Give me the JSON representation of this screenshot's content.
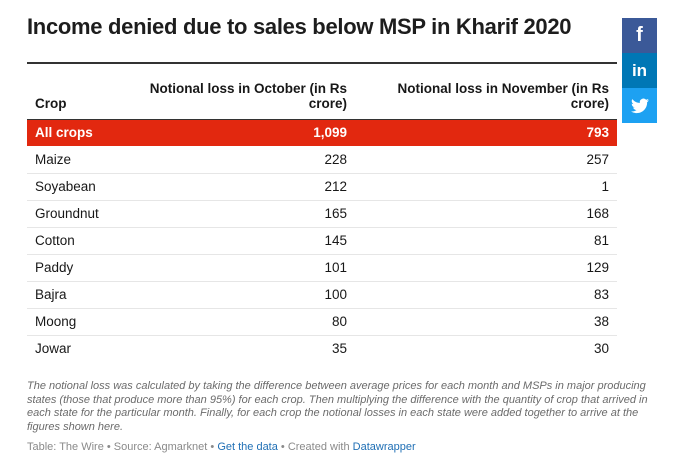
{
  "chart_data": {
    "type": "table",
    "title": "Income denied due to sales below MSP in Kharif 2020",
    "columns": [
      "Crop",
      "Notional loss in October (in Rs crore)",
      "Notional loss in November (in Rs crore)"
    ],
    "rows": [
      {
        "crop": "All crops",
        "october": "1,099",
        "november": "793",
        "highlight": true
      },
      {
        "crop": "Maize",
        "october": "228",
        "november": "257"
      },
      {
        "crop": "Soyabean",
        "october": "212",
        "november": "1"
      },
      {
        "crop": "Groundnut",
        "october": "165",
        "november": "168"
      },
      {
        "crop": "Cotton",
        "october": "145",
        "november": "81"
      },
      {
        "crop": "Paddy",
        "october": "101",
        "november": "129"
      },
      {
        "crop": "Bajra",
        "october": "100",
        "november": "83"
      },
      {
        "crop": "Moong",
        "october": "80",
        "november": "38"
      },
      {
        "crop": "Jowar",
        "october": "35",
        "november": "30"
      }
    ],
    "highlight_color": "#e2280f"
  },
  "note": "The notional loss was calculated by taking the difference between average prices for each month and MSPs in major producing states (those that produce more than 95%) for each crop. Then multiplying the difference with the quantity of crop that arrived in each state for the particular month. Finally, for each crop the notional losses in each state were added together to arrive at the figures shown here.",
  "footer": {
    "prefix": "Table: The Wire • Source: Agmarknet • ",
    "get_data": "Get the data",
    "middle": " • Created with ",
    "datawrapper": "Datawrapper"
  },
  "social": {
    "facebook": {
      "icon": "facebook-icon",
      "glyph": "f",
      "color": "#3b5998"
    },
    "linkedin": {
      "icon": "linkedin-icon",
      "glyph": "in",
      "color": "#0077b5"
    },
    "twitter": {
      "icon": "twitter-icon",
      "glyph": "🐦",
      "color": "#1da1f2"
    }
  }
}
